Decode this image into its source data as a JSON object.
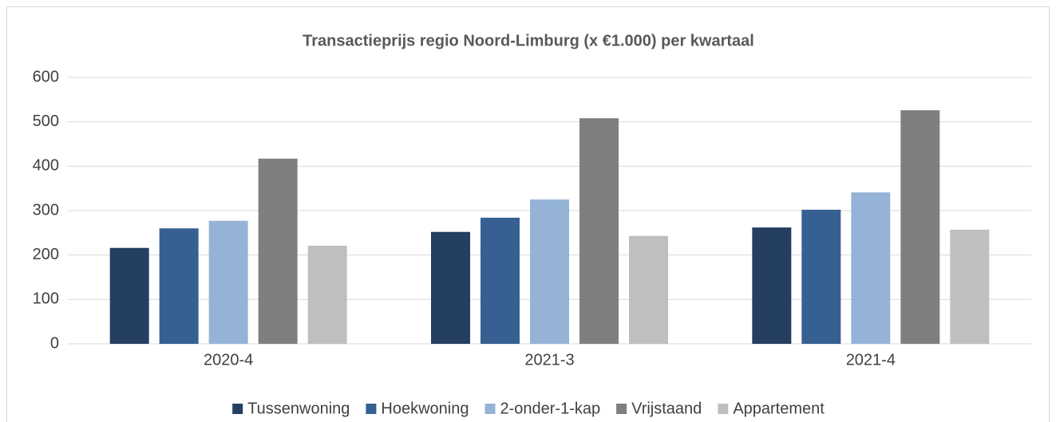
{
  "chart_data": {
    "type": "bar",
    "title": "Transactieprijs regio Noord-Limburg (x €1.000) per kwartaal",
    "categories": [
      "2020-4",
      "2021-3",
      "2021-4"
    ],
    "series": [
      {
        "name": "Tussenwoning",
        "color": "#243f60",
        "values": [
          216,
          252,
          262
        ]
      },
      {
        "name": "Hoekwoning",
        "color": "#366092",
        "values": [
          260,
          284,
          302
        ]
      },
      {
        "name": "2-onder-1-kap",
        "color": "#95b3d7",
        "values": [
          277,
          325,
          341
        ]
      },
      {
        "name": "Vrijstaand",
        "color": "#7f7f7f",
        "values": [
          417,
          508,
          526
        ]
      },
      {
        "name": "Appartement",
        "color": "#bfbfbf",
        "values": [
          221,
          243,
          257
        ]
      }
    ],
    "ylim": [
      0,
      600
    ],
    "yticks": [
      0,
      100,
      200,
      300,
      400,
      500,
      600
    ],
    "grid": true,
    "legend": "bottom"
  }
}
